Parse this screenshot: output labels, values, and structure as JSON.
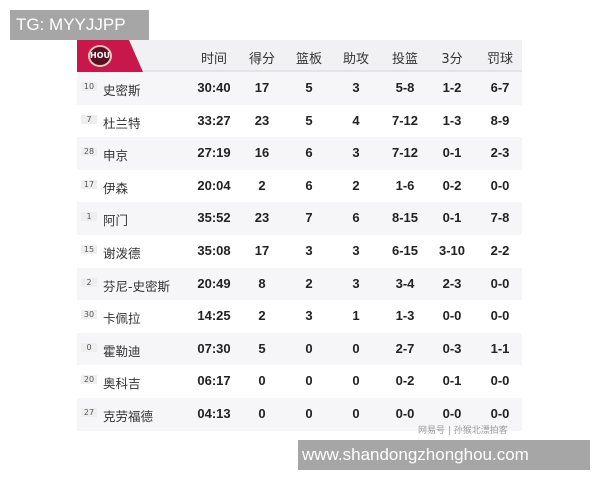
{
  "overlay_top": "TG: MYYJJPP",
  "overlay_bottom": "www.shandongzhonghou.com",
  "watermark": "网易号 | 孙猴北漂拍客",
  "team_logo_text": "HOU",
  "colors": {
    "accent": "#c8174a"
  },
  "headers": [
    "时间",
    "得分",
    "篮板",
    "助攻",
    "投篮",
    "3分",
    "罚球"
  ],
  "rows": [
    {
      "no": "10",
      "name": "史密斯",
      "stats": [
        "30:40",
        "17",
        "5",
        "3",
        "5-8",
        "1-2",
        "6-7"
      ]
    },
    {
      "no": "7",
      "name": "杜兰特",
      "stats": [
        "33:27",
        "23",
        "5",
        "4",
        "7-12",
        "1-3",
        "8-9"
      ]
    },
    {
      "no": "28",
      "name": "申京",
      "stats": [
        "27:19",
        "16",
        "6",
        "3",
        "7-12",
        "0-1",
        "2-3"
      ]
    },
    {
      "no": "17",
      "name": "伊森",
      "stats": [
        "20:04",
        "2",
        "6",
        "2",
        "1-6",
        "0-2",
        "0-0"
      ]
    },
    {
      "no": "1",
      "name": "阿门",
      "stats": [
        "35:52",
        "23",
        "7",
        "6",
        "8-15",
        "0-1",
        "7-8"
      ]
    },
    {
      "no": "15",
      "name": "谢泼德",
      "stats": [
        "35:08",
        "17",
        "3",
        "3",
        "6-15",
        "3-10",
        "2-2"
      ]
    },
    {
      "no": "2",
      "name": "芬尼-史密斯",
      "stats": [
        "20:49",
        "8",
        "2",
        "3",
        "3-4",
        "2-3",
        "0-0"
      ]
    },
    {
      "no": "30",
      "name": "卡佩拉",
      "stats": [
        "14:25",
        "2",
        "3",
        "1",
        "1-3",
        "0-0",
        "0-0"
      ]
    },
    {
      "no": "0",
      "name": "霍勒迪",
      "stats": [
        "07:30",
        "5",
        "0",
        "0",
        "2-7",
        "0-3",
        "1-1"
      ]
    },
    {
      "no": "20",
      "name": "奥科吉",
      "stats": [
        "06:17",
        "0",
        "0",
        "0",
        "0-2",
        "0-1",
        "0-0"
      ]
    },
    {
      "no": "27",
      "name": "克劳福德",
      "stats": [
        "04:13",
        "0",
        "0",
        "0",
        "0-0",
        "0-0",
        "0-0"
      ]
    }
  ]
}
